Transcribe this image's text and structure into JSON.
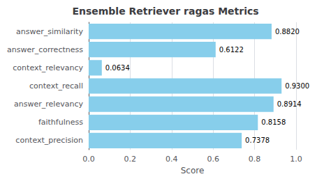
{
  "chart_data": {
    "type": "bar",
    "orientation": "horizontal",
    "title": "Ensemble Retriever ragas Metrics",
    "xlabel": "Score",
    "categories": [
      "answer_similarity",
      "answer_correctness",
      "context_relevancy",
      "context_recall",
      "answer_relevancy",
      "faithfulness",
      "context_precision"
    ],
    "values": [
      0.882,
      0.6122,
      0.0634,
      0.93,
      0.8914,
      0.8158,
      0.7378
    ],
    "value_labels": [
      "0.8820",
      "0.6122",
      "0.0634",
      "0.9300",
      "0.8914",
      "0.8158",
      "0.7378"
    ],
    "data_labels": true,
    "color": "#87CEEB",
    "xlim": [
      0.0,
      1.0
    ],
    "xticks": [
      {
        "value": 0.0,
        "label": "0.0"
      },
      0.2,
      0.4,
      0.6,
      0.8,
      {
        "value": 1.0,
        "label": "1.0"
      }
    ],
    "grid": true
  }
}
